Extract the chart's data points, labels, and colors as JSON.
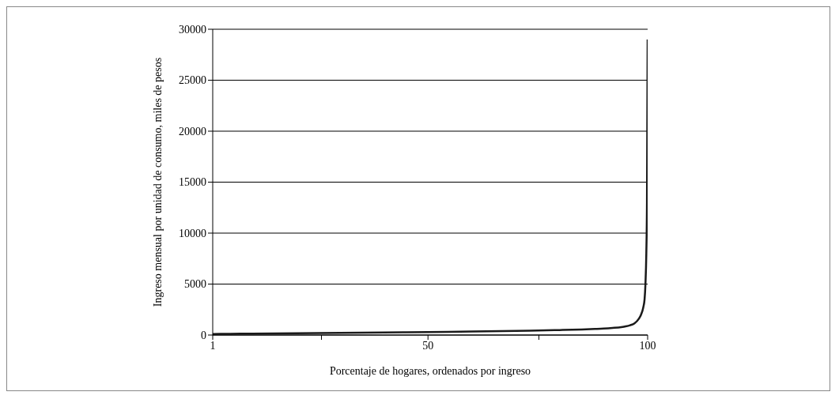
{
  "chart_data": {
    "type": "line",
    "xlabel": "Porcentaje de hogares, ordenados por ingreso",
    "ylabel": "Ingreso mensual por unidad de consumo, miles de pesos",
    "x": [
      1,
      5,
      10,
      20,
      30,
      40,
      50,
      60,
      70,
      75,
      80,
      85,
      88,
      90,
      92,
      94,
      95,
      96,
      97,
      98,
      98.5,
      99,
      99.3,
      99.5,
      99.7,
      99.85,
      100
    ],
    "series": [
      {
        "color": "#1a1a1a",
        "values": [
          100,
          120,
          140,
          180,
          220,
          260,
          300,
          340,
          400,
          440,
          490,
          550,
          600,
          640,
          700,
          780,
          850,
          960,
          1150,
          1600,
          2000,
          2700,
          3500,
          5000,
          8000,
          13000,
          29000
        ]
      }
    ],
    "xlim": [
      1,
      100
    ],
    "xticks": [
      1,
      {
        "value": 25.75,
        "label": null
      },
      50,
      {
        "value": 75.25,
        "label": null
      },
      100
    ],
    "ylim": [
      0,
      30000
    ],
    "yticks": [
      0,
      5000,
      10000,
      15000,
      20000,
      25000,
      30000
    ],
    "grid": "y",
    "legend": false,
    "marker": "none",
    "line_style": "solid"
  }
}
